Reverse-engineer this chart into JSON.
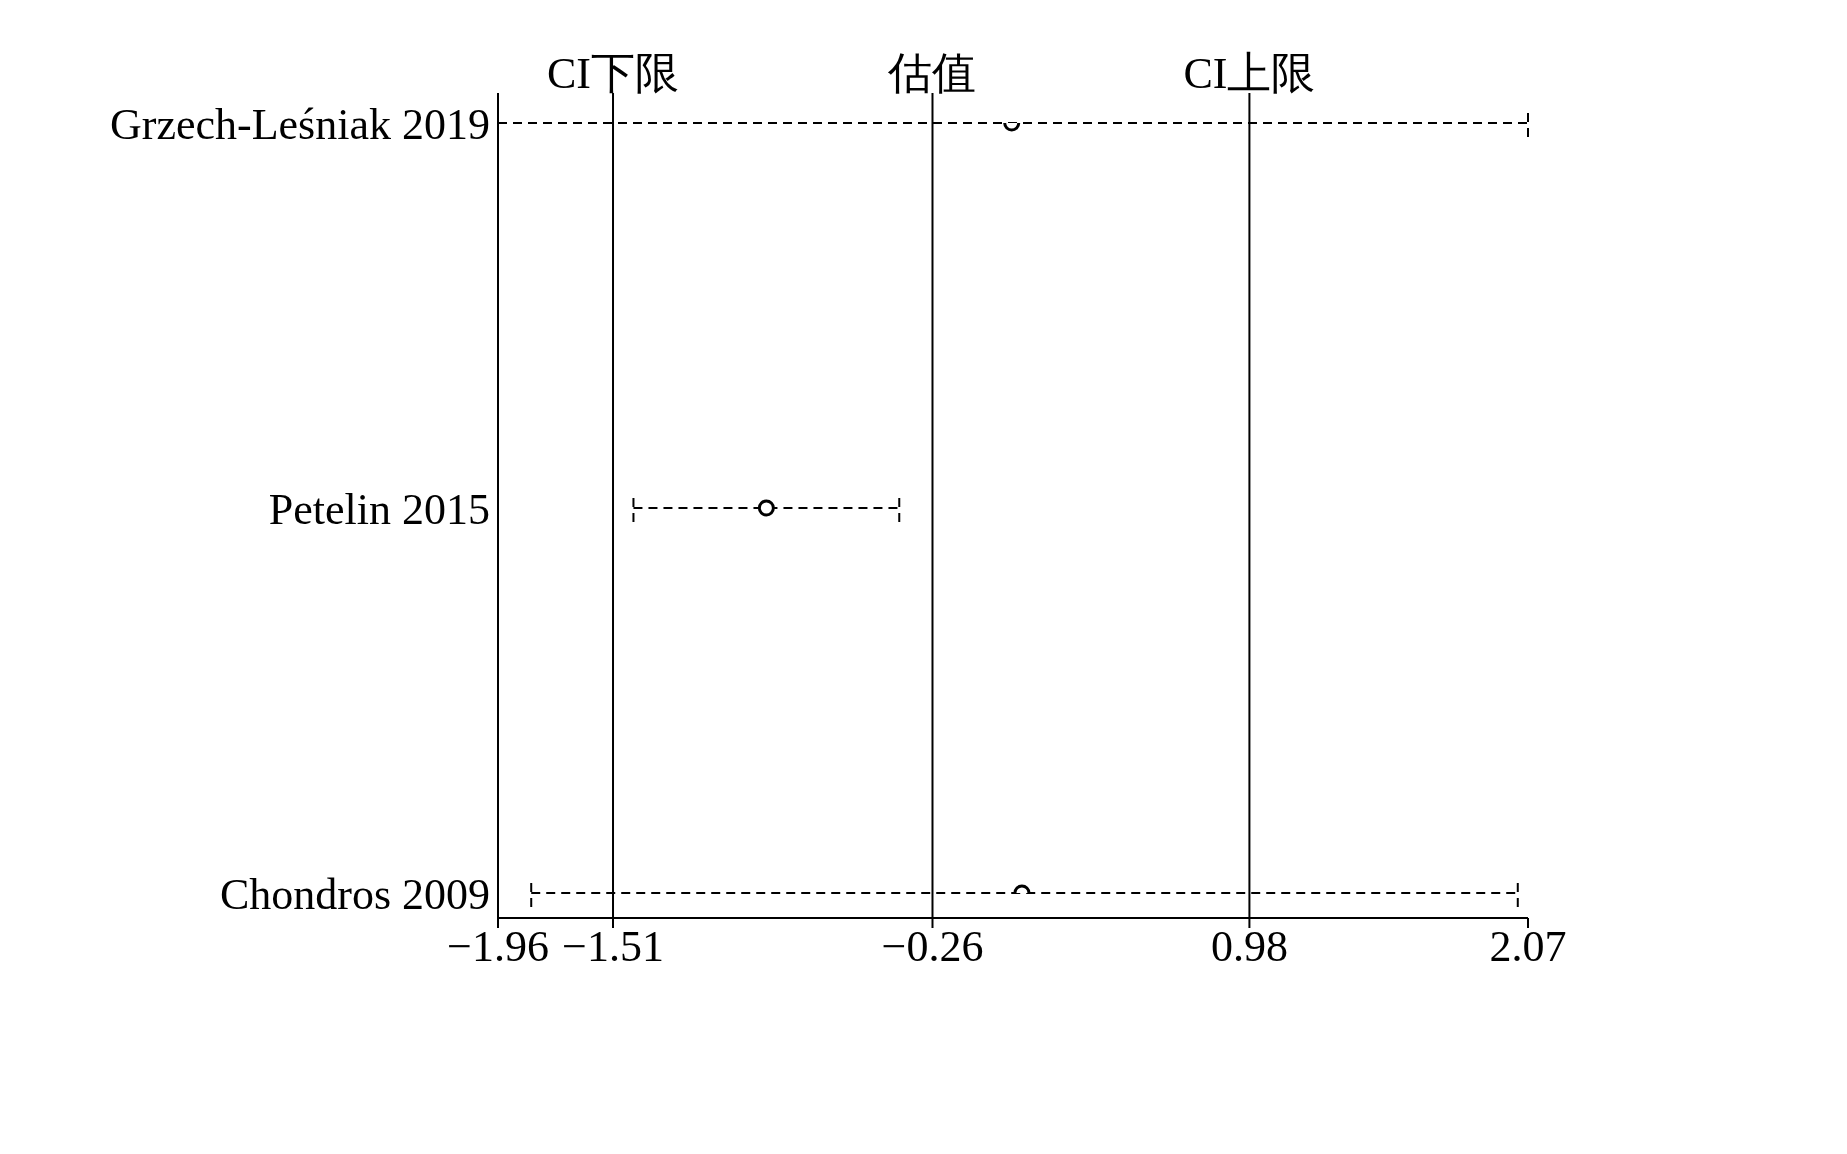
{
  "chart_data": {
    "type": "scatter",
    "orientation": "horizontal",
    "categories": [
      "Grzech-Leśniak 2019",
      "Petelin 2015",
      "Chondros 2009"
    ],
    "values": [
      0.05,
      -0.91,
      0.09
    ],
    "errors": [
      [
        -1.96,
        2.07
      ],
      [
        -1.43,
        -0.39
      ],
      [
        -1.83,
        2.03
      ]
    ],
    "color": "#000000",
    "marker": "circle",
    "line_style": "dashed",
    "grid": false,
    "legend": false,
    "xlim": [
      -1.96,
      2.07
    ],
    "xticks": [
      -1.96,
      -1.51,
      -0.26,
      0.98,
      2.07
    ],
    "ref_lines": [
      {
        "axis": "x",
        "value": -1.51,
        "label": "CI下限"
      },
      {
        "axis": "x",
        "value": -0.26,
        "label": "估值"
      },
      {
        "axis": "x",
        "value": 0.98,
        "label": "CI上限"
      }
    ]
  }
}
